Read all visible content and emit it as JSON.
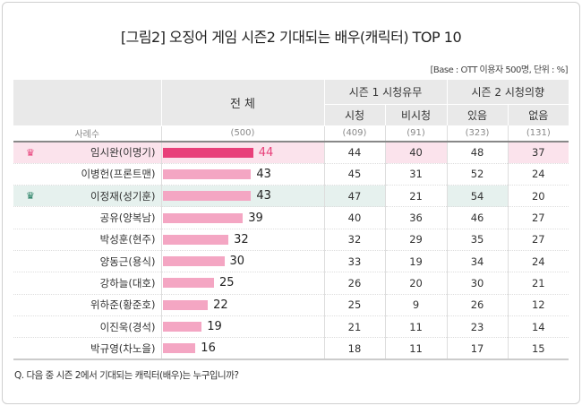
{
  "title": "[그림2] 오징어 게임 시즌2 기대되는 배우(캐릭터) TOP 10",
  "base_note": "[Base : OTT 이용자 500명, 단위 : %]",
  "question": "Q. 다음 중 시즌 2에서 기대되는 캐릭터(배우)는 누구입니까?",
  "colors": {
    "top_bar": "#e8407a",
    "bar": "#f4a6c3",
    "pink_highlight": "#fbe3ec",
    "green_highlight": "#e6f1ee",
    "crown_pink": "#e8407a",
    "crown_green": "#1d7a5c"
  },
  "chart_data": {
    "type": "table",
    "headers": {
      "total": "전 체",
      "group1": "시즌 1 시청유무",
      "group2": "시즌 2 시청의향",
      "cols": [
        "시청",
        "비시청",
        "있음",
        "없음"
      ]
    },
    "sample": {
      "label": "사례수",
      "values": [
        "(500)",
        "(409)",
        "(91)",
        "(323)",
        "(131)"
      ]
    },
    "rows": [
      {
        "name": "임시완(이명기)",
        "total": 44,
        "vals": [
          44,
          40,
          48,
          37
        ],
        "highlight": "pink",
        "hl": [
          1,
          3
        ]
      },
      {
        "name": "이병헌(프론트맨)",
        "total": 43,
        "vals": [
          45,
          31,
          52,
          24
        ]
      },
      {
        "name": "이정재(성기훈)",
        "total": 43,
        "vals": [
          47,
          21,
          54,
          20
        ],
        "highlight": "green",
        "hl": [
          0,
          2
        ]
      },
      {
        "name": "공유(양복남)",
        "total": 39,
        "vals": [
          40,
          36,
          46,
          27
        ]
      },
      {
        "name": "박성훈(현주)",
        "total": 32,
        "vals": [
          32,
          29,
          35,
          27
        ]
      },
      {
        "name": "양동근(용식)",
        "total": 30,
        "vals": [
          33,
          19,
          34,
          24
        ]
      },
      {
        "name": "강하늘(대호)",
        "total": 25,
        "vals": [
          26,
          20,
          30,
          21
        ]
      },
      {
        "name": "위하준(황준호)",
        "total": 22,
        "vals": [
          25,
          9,
          26,
          12
        ]
      },
      {
        "name": "이진욱(경석)",
        "total": 19,
        "vals": [
          21,
          11,
          23,
          14
        ]
      },
      {
        "name": "박규영(차노을)",
        "total": 16,
        "vals": [
          18,
          11,
          17,
          15
        ]
      }
    ]
  }
}
